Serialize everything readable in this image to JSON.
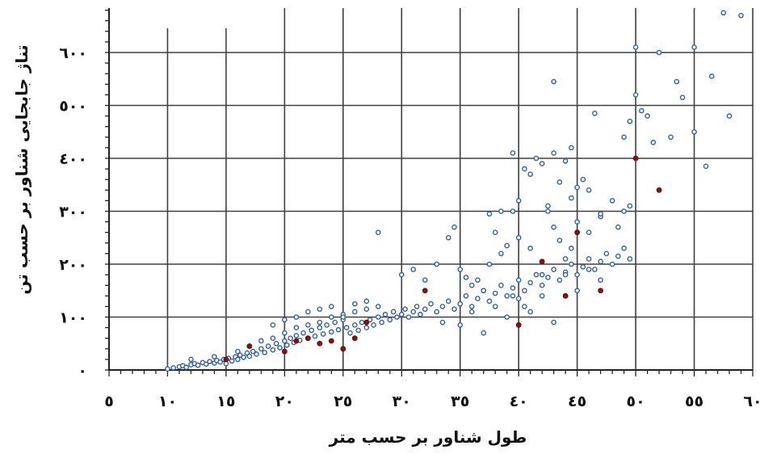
{
  "chart_data": {
    "type": "scatter",
    "title": "",
    "xlabel": "طول شناور بر حسب متر",
    "ylabel": "تناژ جابجایی شناور بر حسب تن",
    "xlim": [
      5,
      60
    ],
    "ylim": [
      0,
      680
    ],
    "x_ticks": [
      5,
      10,
      15,
      20,
      25,
      30,
      35,
      40,
      45,
      50,
      55,
      60
    ],
    "x_tick_labels": [
      "٥",
      "١٠",
      "١٥",
      "٢٠",
      "٢٥",
      "٣٠",
      "٣٥",
      "٤٠",
      "٤٥",
      "٥٠",
      "٥٥",
      "٦٠"
    ],
    "y_ticks": [
      0,
      100,
      200,
      300,
      400,
      500,
      600
    ],
    "y_tick_labels": [
      "٠",
      "١٠٠",
      "٢٠٠",
      "٣٠٠",
      "٤٠٠",
      "٥٠٠",
      "٦٠٠"
    ],
    "grid": true,
    "colors": {
      "series_main": "#2f5fa7",
      "series_highlight": "#8b1010",
      "grid": "#404040"
    },
    "series": [
      {
        "marker": "hollow-circle",
        "points": [
          [
            10,
            2
          ],
          [
            10.5,
            4
          ],
          [
            11,
            6
          ],
          [
            11.3,
            8
          ],
          [
            11.6,
            5
          ],
          [
            12,
            10
          ],
          [
            12.3,
            12
          ],
          [
            12.6,
            9
          ],
          [
            13,
            14
          ],
          [
            13.3,
            11
          ],
          [
            13.6,
            16
          ],
          [
            14,
            13
          ],
          [
            14.2,
            18
          ],
          [
            14.5,
            15
          ],
          [
            14.8,
            20
          ],
          [
            15,
            12
          ],
          [
            15.2,
            22
          ],
          [
            15.5,
            17
          ],
          [
            15.8,
            25
          ],
          [
            16,
            20
          ],
          [
            16.2,
            28
          ],
          [
            16.5,
            24
          ],
          [
            16.8,
            32
          ],
          [
            17,
            26
          ],
          [
            17.3,
            35
          ],
          [
            17.6,
            30
          ],
          [
            18,
            40
          ],
          [
            18.3,
            33
          ],
          [
            18.6,
            45
          ],
          [
            19,
            38
          ],
          [
            19.3,
            50
          ],
          [
            19.6,
            42
          ],
          [
            20,
            55
          ],
          [
            20.2,
            47
          ],
          [
            20.5,
            60
          ],
          [
            20.8,
            52
          ],
          [
            21,
            65
          ],
          [
            21.3,
            56
          ],
          [
            21.6,
            70
          ],
          [
            22,
            60
          ],
          [
            22.3,
            75
          ],
          [
            22.6,
            64
          ],
          [
            23,
            80
          ],
          [
            23.3,
            68
          ],
          [
            23.6,
            85
          ],
          [
            24,
            72
          ],
          [
            24.3,
            90
          ],
          [
            24.6,
            76
          ],
          [
            25,
            95
          ],
          [
            25.3,
            80
          ],
          [
            25.6,
            70
          ],
          [
            26,
            85
          ],
          [
            26.3,
            75
          ],
          [
            26.6,
            90
          ],
          [
            27,
            80
          ],
          [
            27.3,
            95
          ],
          [
            27.6,
            85
          ],
          [
            28,
            100
          ],
          [
            28.3,
            90
          ],
          [
            28.6,
            105
          ],
          [
            29,
            95
          ],
          [
            29.3,
            110
          ],
          [
            29.6,
            100
          ],
          [
            30,
            105
          ],
          [
            30.3,
            115
          ],
          [
            30.6,
            100
          ],
          [
            31,
            110
          ],
          [
            31.3,
            120
          ],
          [
            31.6,
            105
          ],
          [
            32,
            115
          ],
          [
            32.5,
            125
          ],
          [
            33,
            110
          ],
          [
            33.5,
            120
          ],
          [
            34,
            130
          ],
          [
            34.5,
            115
          ],
          [
            35,
            125
          ],
          [
            35.5,
            140
          ],
          [
            36,
            120
          ],
          [
            36.5,
            135
          ],
          [
            37,
            150
          ],
          [
            37.5,
            130
          ],
          [
            38,
            145
          ],
          [
            38.5,
            160
          ],
          [
            39,
            140
          ],
          [
            39.5,
            155
          ],
          [
            40,
            170
          ],
          [
            40.5,
            150
          ],
          [
            41,
            165
          ],
          [
            41.5,
            180
          ],
          [
            42,
            160
          ],
          [
            42.5,
            175
          ],
          [
            43,
            190
          ],
          [
            43.5,
            170
          ],
          [
            44,
            185
          ],
          [
            44.5,
            200
          ],
          [
            45,
            180
          ],
          [
            45.5,
            195
          ],
          [
            46,
            210
          ],
          [
            46.5,
            190
          ],
          [
            47,
            205
          ],
          [
            47.5,
            220
          ],
          [
            48,
            200
          ],
          [
            48.5,
            215
          ],
          [
            49,
            230
          ],
          [
            49.5,
            210
          ],
          [
            12,
            20
          ],
          [
            14,
            25
          ],
          [
            16,
            35
          ],
          [
            17,
            45
          ],
          [
            18,
            55
          ],
          [
            19,
            60
          ],
          [
            20,
            70
          ],
          [
            21,
            80
          ],
          [
            22,
            85
          ],
          [
            23,
            90
          ],
          [
            24,
            100
          ],
          [
            25,
            105
          ],
          [
            26,
            110
          ],
          [
            27,
            115
          ],
          [
            28,
            120
          ],
          [
            22,
            110
          ],
          [
            23,
            115
          ],
          [
            24,
            120
          ],
          [
            25,
            100
          ],
          [
            26,
            125
          ],
          [
            27,
            130
          ],
          [
            20,
            95
          ],
          [
            21,
            100
          ],
          [
            19,
            85
          ],
          [
            28,
            260
          ],
          [
            30,
            180
          ],
          [
            31,
            190
          ],
          [
            32,
            170
          ],
          [
            33,
            200
          ],
          [
            34,
            250
          ],
          [
            34.5,
            270
          ],
          [
            35,
            190
          ],
          [
            35.5,
            175
          ],
          [
            36,
            160
          ],
          [
            36.5,
            170
          ],
          [
            37,
            150
          ],
          [
            37.5,
            200
          ],
          [
            38,
            260
          ],
          [
            38.5,
            220
          ],
          [
            39,
            235
          ],
          [
            39.5,
            300
          ],
          [
            40,
            250
          ],
          [
            40.5,
            380
          ],
          [
            41,
            230
          ],
          [
            42,
            180
          ],
          [
            42.5,
            300
          ],
          [
            43,
            270
          ],
          [
            43.5,
            245
          ],
          [
            44,
            210
          ],
          [
            44.5,
            230
          ],
          [
            45,
            280
          ],
          [
            46,
            260
          ],
          [
            47,
            290
          ],
          [
            48,
            320
          ],
          [
            49,
            300
          ],
          [
            49.5,
            310
          ],
          [
            33.5,
            90
          ],
          [
            35,
            85
          ],
          [
            36,
            110
          ],
          [
            37,
            70
          ],
          [
            38,
            120
          ],
          [
            39,
            100
          ],
          [
            39.5,
            140
          ],
          [
            40,
            135
          ],
          [
            40.5,
            120
          ],
          [
            41,
            110
          ],
          [
            42,
            140
          ],
          [
            43,
            90
          ],
          [
            44,
            180
          ],
          [
            45,
            150
          ],
          [
            46,
            190
          ],
          [
            47,
            170
          ],
          [
            39.5,
            410
          ],
          [
            40,
            320
          ],
          [
            41,
            370
          ],
          [
            41.5,
            400
          ],
          [
            42,
            390
          ],
          [
            43,
            410
          ],
          [
            43.5,
            355
          ],
          [
            44,
            395
          ],
          [
            44.5,
            420
          ],
          [
            45.5,
            360
          ],
          [
            46,
            340
          ],
          [
            47,
            295
          ],
          [
            48.5,
            270
          ],
          [
            43,
            545
          ],
          [
            46.5,
            485
          ],
          [
            50,
            610
          ],
          [
            51,
            480
          ],
          [
            51.5,
            430
          ],
          [
            52,
            600
          ],
          [
            53,
            440
          ],
          [
            53.5,
            545
          ],
          [
            54,
            515
          ],
          [
            55,
            450
          ],
          [
            55,
            610
          ],
          [
            56,
            385
          ],
          [
            56.5,
            555
          ],
          [
            57.5,
            675
          ],
          [
            58,
            480
          ],
          [
            59,
            670
          ],
          [
            49,
            440
          ],
          [
            49.5,
            470
          ],
          [
            50,
            520
          ],
          [
            50.5,
            490
          ],
          [
            44.5,
            325
          ],
          [
            45,
            345
          ],
          [
            42.5,
            310
          ],
          [
            38.5,
            300
          ],
          [
            37.5,
            295
          ]
        ]
      },
      {
        "marker": "filled-dot",
        "points": [
          [
            15,
            20
          ],
          [
            17,
            45
          ],
          [
            20,
            35
          ],
          [
            21,
            55
          ],
          [
            22,
            60
          ],
          [
            23,
            50
          ],
          [
            24,
            55
          ],
          [
            25,
            40
          ],
          [
            26,
            60
          ],
          [
            27,
            90
          ],
          [
            32,
            150
          ],
          [
            40,
            85
          ],
          [
            42,
            205
          ],
          [
            44,
            140
          ],
          [
            45,
            260
          ],
          [
            47,
            150
          ],
          [
            50,
            400
          ],
          [
            52,
            340
          ]
        ]
      }
    ]
  }
}
